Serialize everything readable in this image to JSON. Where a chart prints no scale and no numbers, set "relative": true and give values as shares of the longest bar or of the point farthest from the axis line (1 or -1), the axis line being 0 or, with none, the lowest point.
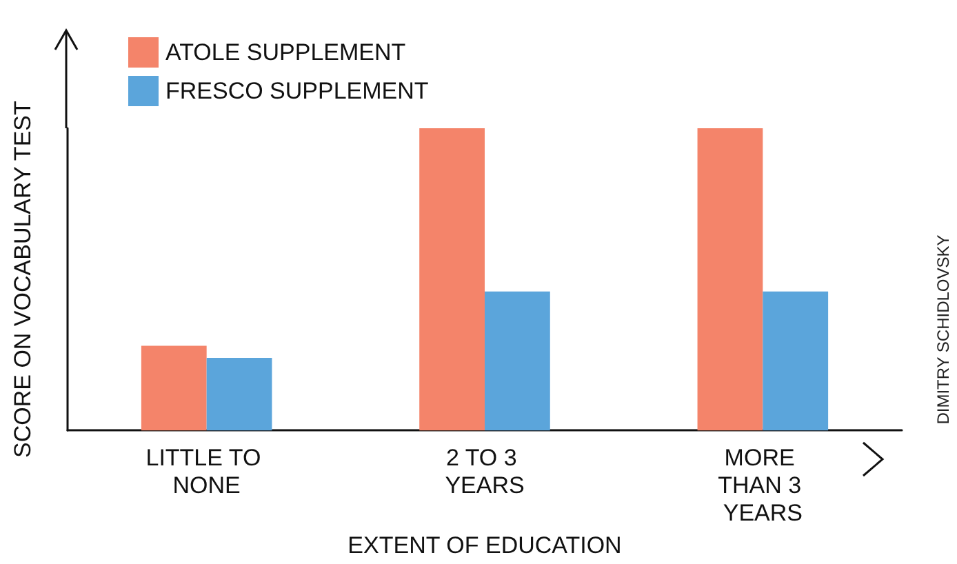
{
  "chart_data": {
    "type": "bar",
    "xlabel": "EXTENT OF EDUCATION",
    "ylabel": "SCORE ON VOCABULARY TEST",
    "categories": [
      "LITTLE TO NONE",
      "2 TO 3 YEARS",
      "MORE THAN 3 YEARS"
    ],
    "series": [
      {
        "name": "ATOLE SUPPLEMENT",
        "color": "#f4846a",
        "values": [
          0.28,
          1,
          1
        ]
      },
      {
        "name": "FRESCO SUPPLEMENT",
        "color": "#5ba5db",
        "values": [
          0.24,
          0.46,
          0.46
        ]
      }
    ],
    "relative": true,
    "legend": "top left",
    "grid": false,
    "annotations": [
      "DIMITRY SCHIDLOVSKY"
    ]
  }
}
